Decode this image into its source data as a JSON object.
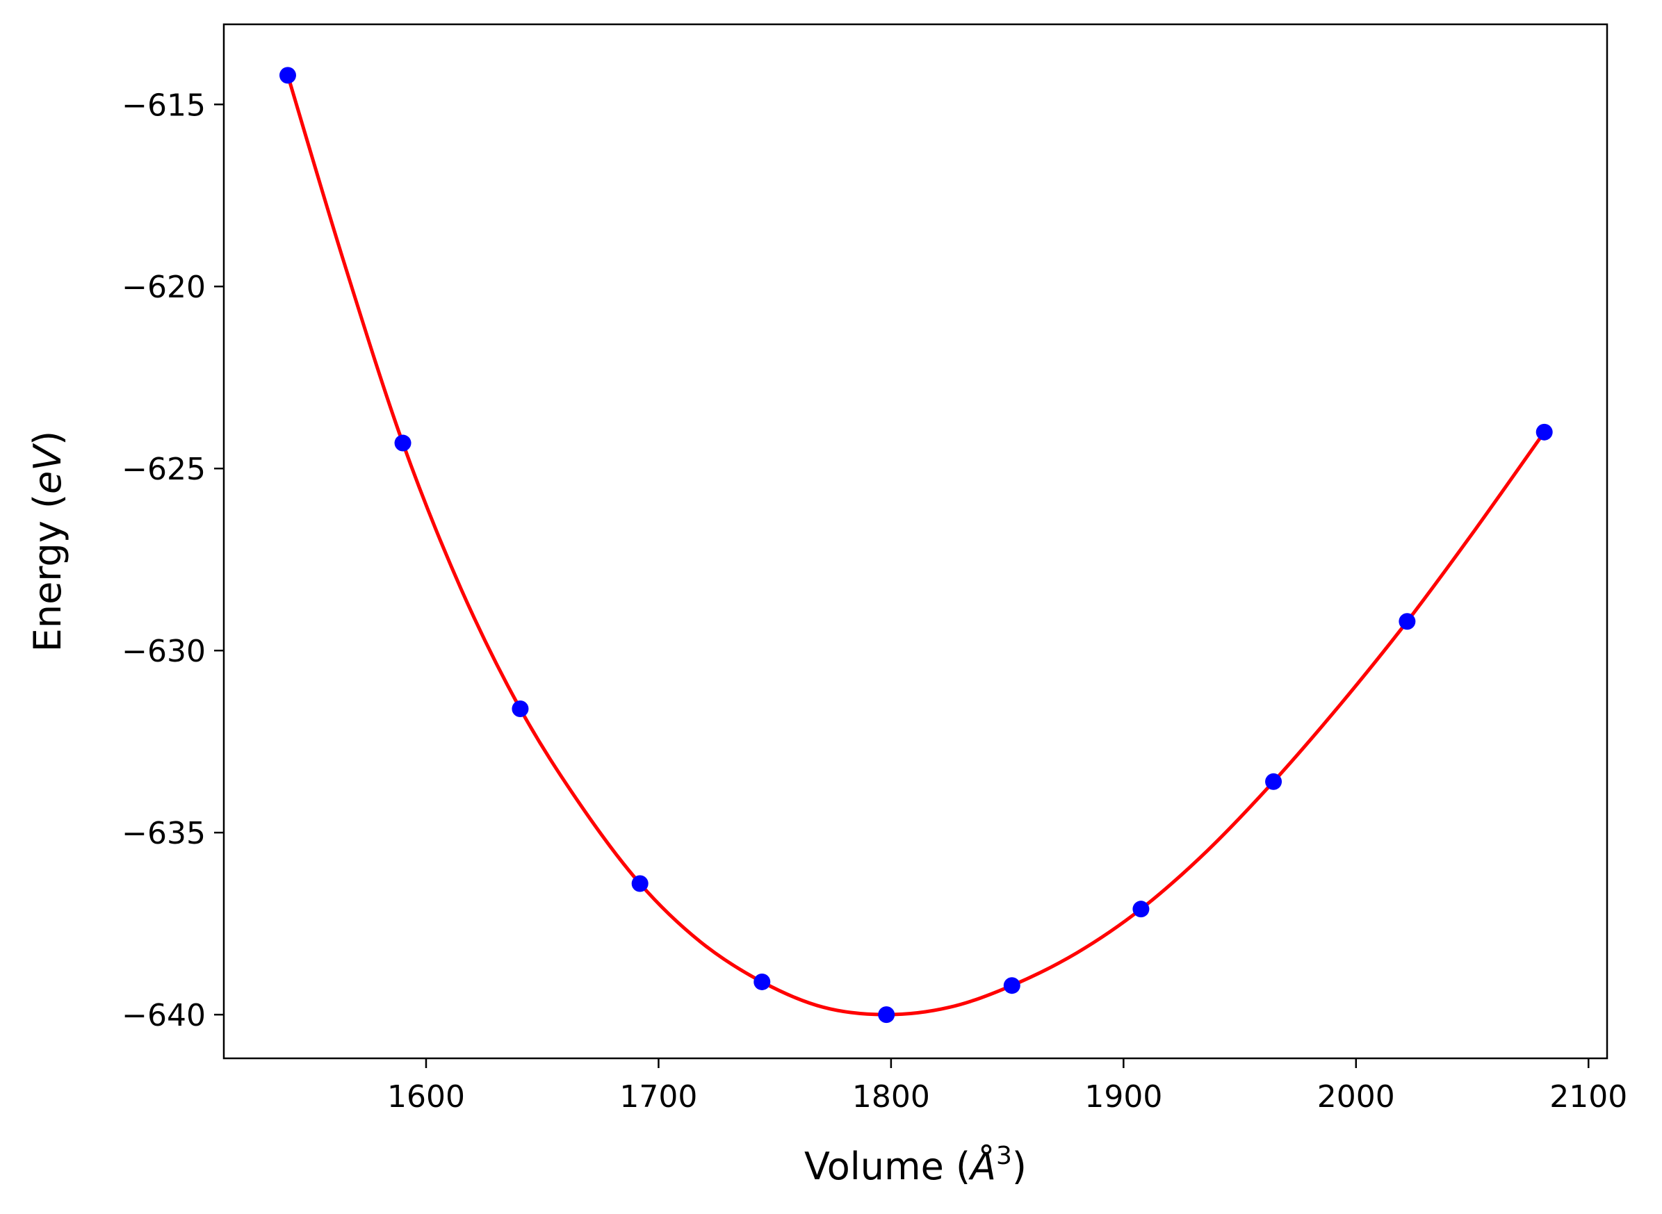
{
  "chart_data": {
    "type": "scatter",
    "title": "",
    "xlabel": "Volume (Å³)",
    "ylabel": "Energy (eV)",
    "xlim": [
      1513,
      2108
    ],
    "ylim": [
      -641.2,
      -612.8
    ],
    "grid": false,
    "legend": "none",
    "x_ticks": [
      {
        "value": 1600,
        "label": "1600"
      },
      {
        "value": 1700,
        "label": "1700"
      },
      {
        "value": 1800,
        "label": "1800"
      },
      {
        "value": 1900,
        "label": "1900"
      },
      {
        "value": 2000,
        "label": "2000"
      },
      {
        "value": 2100,
        "label": "2100"
      }
    ],
    "y_ticks": [
      {
        "value": -615,
        "label": "−615"
      },
      {
        "value": -620,
        "label": "−620"
      },
      {
        "value": -625,
        "label": "−625"
      },
      {
        "value": -630,
        "label": "−630"
      },
      {
        "value": -635,
        "label": "−635"
      },
      {
        "value": -640,
        "label": "−640"
      }
    ],
    "series": [
      {
        "kind": "points",
        "color": "#0000ff",
        "x": [
          1540.5,
          1590,
          1640.5,
          1692,
          1744.5,
          1798,
          1852,
          1907.5,
          1964.5,
          2022,
          2081
        ],
        "y": [
          -614.2,
          -624.3,
          -631.6,
          -636.4,
          -639.1,
          -640.0,
          -639.2,
          -637.1,
          -633.6,
          -629.2,
          -624.0
        ]
      },
      {
        "kind": "fit-curve",
        "color": "#ff0000",
        "x": [
          1540.5,
          1565,
          1590,
          1615,
          1640.5,
          1666,
          1692,
          1718,
          1744.5,
          1771,
          1798,
          1825,
          1852,
          1880,
          1907.5,
          1936,
          1964.5,
          1993,
          2022,
          2051,
          2081
        ],
        "y": [
          -614.2,
          -619.4,
          -624.3,
          -628.3,
          -631.6,
          -634.2,
          -636.4,
          -638.0,
          -639.1,
          -639.8,
          -640.0,
          -639.8,
          -639.2,
          -638.3,
          -637.1,
          -635.5,
          -633.6,
          -631.5,
          -629.2,
          -626.7,
          -624.0
        ]
      }
    ]
  }
}
